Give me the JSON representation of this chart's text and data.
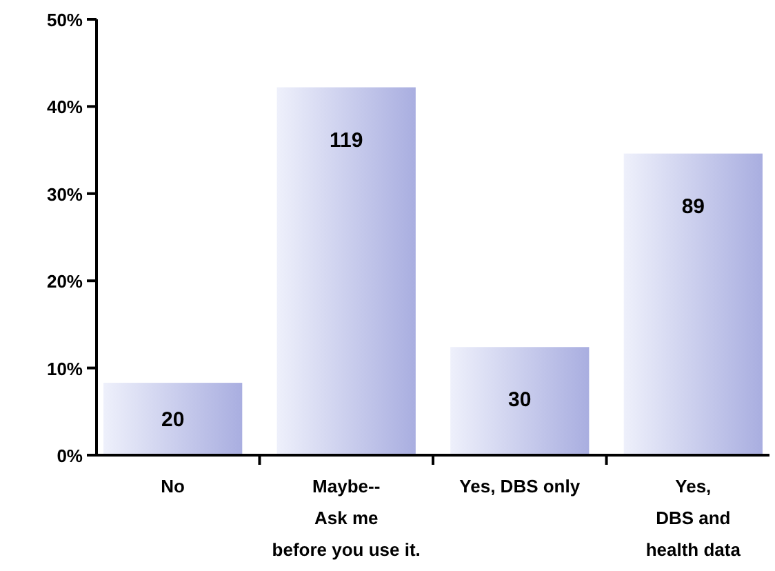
{
  "chart_data": {
    "type": "bar",
    "categories": [
      "No",
      "Maybe--\nAsk me\nbefore you use it.",
      "Yes, DBS only",
      "Yes,\nDBS and\nhealth data"
    ],
    "values": [
      8.3,
      42.2,
      12.4,
      34.6
    ],
    "annotations": [
      {
        "text": "20",
        "x": "No",
        "y": 8.3
      },
      {
        "text": "119",
        "x": "Maybe--\nAsk me\nbefore you use it.",
        "y": 42.2
      },
      {
        "text": "30",
        "x": "Yes, DBS only",
        "y": 12.4
      },
      {
        "text": "89",
        "x": "Yes,\nDBS and\nhealth data",
        "y": 34.6
      }
    ],
    "color": "#a9aee0",
    "ylim": [
      0,
      50
    ],
    "yticks": [
      {
        "value": 0,
        "label": "0%"
      },
      {
        "value": 10,
        "label": "10%"
      },
      {
        "value": 20,
        "label": "20%"
      },
      {
        "value": 30,
        "label": "30%"
      },
      {
        "value": 40,
        "label": "40%"
      },
      {
        "value": 50,
        "label": "50%"
      }
    ],
    "grid": false
  }
}
